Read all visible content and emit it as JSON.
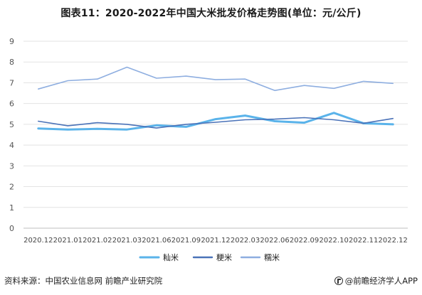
{
  "chart_data": {
    "type": "line",
    "title": "图表11：2020-2022年中国大米批发价格走势图(单位：元/公斤)",
    "categories": [
      "2020.12",
      "2021.01",
      "2021.02",
      "2021.03",
      "2021.06",
      "2021.09",
      "2021.12",
      "2022.03",
      "2022.06",
      "2022.09",
      "2022.10",
      "2022.11",
      "2022.12"
    ],
    "ylim": [
      0,
      9
    ],
    "yticks": [
      0,
      1,
      2,
      3,
      4,
      5,
      6,
      7,
      8,
      9
    ],
    "grid": true,
    "legend_position": "bottom",
    "series": [
      {
        "name": "籼米",
        "color": "#5ab3ea",
        "width": 3,
        "values": [
          4.8,
          4.75,
          4.78,
          4.75,
          4.95,
          4.88,
          5.25,
          5.42,
          5.15,
          5.08,
          5.55,
          5.05,
          5.0
        ]
      },
      {
        "name": "粳米",
        "color": "#4a72b8",
        "width": 1.6,
        "values": [
          5.15,
          4.93,
          5.08,
          5.0,
          4.82,
          5.0,
          5.1,
          5.22,
          5.25,
          5.32,
          5.22,
          5.05,
          5.28
        ]
      },
      {
        "name": "糯米",
        "color": "#8eaee0",
        "width": 1.6,
        "values": [
          6.7,
          7.1,
          7.18,
          7.75,
          7.22,
          7.32,
          7.15,
          7.18,
          6.63,
          6.87,
          6.73,
          7.07,
          6.97
        ]
      }
    ]
  },
  "footer": {
    "source": "资料来源：中国农业信息网 前瞻产业研究院",
    "brand": "@前瞻经济学人APP"
  }
}
